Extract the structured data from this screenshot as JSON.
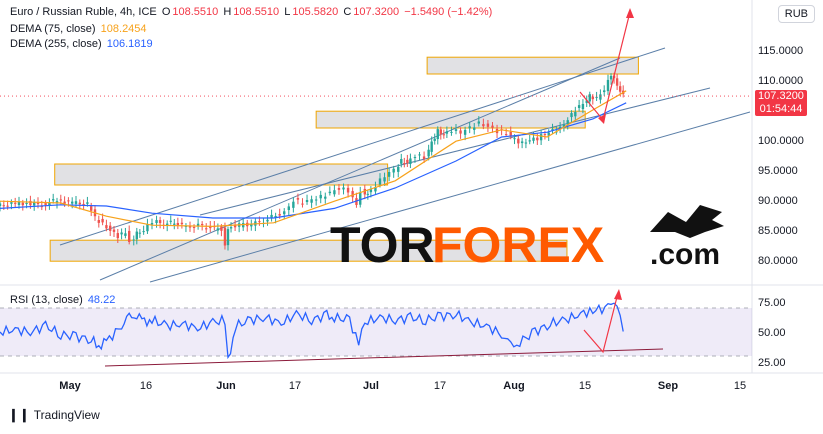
{
  "header": {
    "symbol_line": "Euro / Russian Ruble, 4h, ICE",
    "open_label": "O",
    "open": "108.5510",
    "high_label": "H",
    "high": "108.5510",
    "low_label": "L",
    "low": "105.5820",
    "close_label": "C",
    "close": "107.3200",
    "change": "−1.5490 (−1.42%)",
    "dema75_label": "DEMA (75, close)",
    "dema75_value": "108.2454",
    "dema255_label": "DEMA (255, close)",
    "dema255_value": "106.1819",
    "currency": "RUB"
  },
  "price_tag": {
    "price": "107.3200",
    "countdown": "01:54:44"
  },
  "rsi": {
    "label": "RSI (13, close)",
    "value": "48.22"
  },
  "watermark": {
    "part1": "TOR",
    "part2": "FOREX",
    "part3": ".com"
  },
  "branding": {
    "tradingview": "TradingView"
  },
  "colors": {
    "up": "#26a69a",
    "down": "#ef5350",
    "dema75": "#f7a21b",
    "dema255": "#2962ff",
    "rsi": "#2962ff",
    "accent_red": "#f23645",
    "zone_border": "#f0a500"
  },
  "chart_data": [
    {
      "type": "candlestick",
      "x_tick_labels": [
        "May",
        "16",
        "Jun",
        "17",
        "Jul",
        "17",
        "Aug",
        "15",
        "Sep",
        "15"
      ],
      "y_tick_labels": [
        "115.0000",
        "110.0000",
        "105.0000",
        "100.0000",
        "95.0000",
        "90.0000",
        "85.0000",
        "80.0000"
      ],
      "ylim": [
        78,
        118
      ],
      "close_path": [
        [
          0,
          89.0
        ],
        [
          10,
          89.3
        ],
        [
          20,
          89.5
        ],
        [
          30,
          89.2
        ],
        [
          40,
          90.0
        ],
        [
          50,
          89.5
        ],
        [
          60,
          89.3
        ],
        [
          65,
          87.0
        ],
        [
          70,
          86.0
        ],
        [
          75,
          85.0
        ],
        [
          80,
          84.0
        ],
        [
          85,
          84.5
        ],
        [
          88,
          83.0
        ],
        [
          92,
          84.5
        ],
        [
          97,
          85.0
        ],
        [
          103,
          86.5
        ],
        [
          110,
          86.0
        ],
        [
          117,
          86.3
        ],
        [
          125,
          85.5
        ],
        [
          133,
          85.7
        ],
        [
          141,
          85.3
        ],
        [
          148,
          85.2
        ],
        [
          150,
          82.5
        ],
        [
          152,
          85.5
        ],
        [
          160,
          85.8
        ],
        [
          168,
          86.0
        ],
        [
          176,
          86.5
        ],
        [
          184,
          87.5
        ],
        [
          190,
          88.0
        ],
        [
          196,
          90.0
        ],
        [
          202,
          89.5
        ],
        [
          208,
          90.0
        ],
        [
          214,
          90.5
        ],
        [
          220,
          91.3
        ],
        [
          226,
          92.0
        ],
        [
          232,
          91.5
        ],
        [
          237,
          89.0
        ],
        [
          240,
          91.5
        ],
        [
          244,
          91.0
        ],
        [
          250,
          92.5
        ],
        [
          256,
          94.0
        ],
        [
          262,
          95.0
        ],
        [
          266,
          96.5
        ],
        [
          270,
          96.2
        ],
        [
          276,
          97.5
        ],
        [
          282,
          97.0
        ],
        [
          286,
          99.5
        ],
        [
          290,
          101.5
        ],
        [
          294,
          101.0
        ],
        [
          300,
          101.7
        ],
        [
          306,
          101.2
        ],
        [
          312,
          102.0
        ],
        [
          318,
          102.8
        ],
        [
          324,
          102.3
        ],
        [
          330,
          101.5
        ],
        [
          336,
          101.0
        ],
        [
          341,
          100.0
        ],
        [
          346,
          99.5
        ],
        [
          351,
          100.1
        ],
        [
          356,
          100.3
        ],
        [
          361,
          101.0
        ],
        [
          366,
          101.5
        ],
        [
          371,
          102.0
        ],
        [
          376,
          103.5
        ],
        [
          381,
          105.0
        ],
        [
          386,
          106.0
        ],
        [
          390,
          107.3
        ],
        [
          395,
          107.0
        ],
        [
          400,
          108.5
        ],
        [
          404,
          111.0
        ],
        [
          408,
          109.0
        ],
        [
          412,
          107.3
        ]
      ],
      "x_domain": [
        0,
        500
      ],
      "dema75_path": [
        [
          0,
          89.8
        ],
        [
          40,
          89.5
        ],
        [
          70,
          87.3
        ],
        [
          100,
          85.8
        ],
        [
          140,
          85.6
        ],
        [
          180,
          86.2
        ],
        [
          220,
          89.8
        ],
        [
          260,
          93.2
        ],
        [
          300,
          99.8
        ],
        [
          330,
          101.7
        ],
        [
          360,
          100.5
        ],
        [
          390,
          105.0
        ],
        [
          412,
          108.2
        ]
      ],
      "dema255_path": [
        [
          0,
          88.6
        ],
        [
          40,
          89.2
        ],
        [
          70,
          89.0
        ],
        [
          100,
          87.8
        ],
        [
          140,
          87.0
        ],
        [
          180,
          87.0
        ],
        [
          220,
          88.6
        ],
        [
          260,
          92.0
        ],
        [
          300,
          96.5
        ],
        [
          330,
          100.5
        ],
        [
          360,
          101.3
        ],
        [
          390,
          103.5
        ],
        [
          412,
          106.2
        ]
      ],
      "zones": [
        [
          36,
          255,
          92.5,
          96.0
        ],
        [
          33,
          373,
          79.8,
          83.3
        ],
        [
          208,
          385,
          102.0,
          104.8
        ],
        [
          281,
          420,
          111.0,
          113.8
        ]
      ]
    },
    {
      "type": "line",
      "name": "RSI (13, close)",
      "y_tick_labels": [
        "75.00",
        "50.00",
        "25.00"
      ],
      "ylim": [
        20,
        80
      ],
      "upper_band": 70,
      "lower_band": 30,
      "values_path": [
        [
          0,
          50
        ],
        [
          10,
          52
        ],
        [
          20,
          50
        ],
        [
          30,
          55
        ],
        [
          40,
          48
        ],
        [
          50,
          46
        ],
        [
          60,
          44
        ],
        [
          65,
          38
        ],
        [
          70,
          42
        ],
        [
          80,
          55
        ],
        [
          85,
          62
        ],
        [
          90,
          65
        ],
        [
          95,
          58
        ],
        [
          100,
          60
        ],
        [
          110,
          55
        ],
        [
          120,
          57
        ],
        [
          130,
          53
        ],
        [
          140,
          58
        ],
        [
          148,
          60
        ],
        [
          150,
          25
        ],
        [
          155,
          55
        ],
        [
          165,
          60
        ],
        [
          175,
          62
        ],
        [
          185,
          57
        ],
        [
          195,
          65
        ],
        [
          205,
          60
        ],
        [
          215,
          64
        ],
        [
          220,
          62
        ],
        [
          230,
          60
        ],
        [
          236,
          40
        ],
        [
          240,
          58
        ],
        [
          250,
          62
        ],
        [
          260,
          60
        ],
        [
          270,
          62
        ],
        [
          280,
          60
        ],
        [
          290,
          63
        ],
        [
          300,
          65
        ],
        [
          310,
          58
        ],
        [
          320,
          55
        ],
        [
          330,
          48
        ],
        [
          336,
          38
        ],
        [
          342,
          42
        ],
        [
          352,
          50
        ],
        [
          362,
          57
        ],
        [
          372,
          60
        ],
        [
          382,
          65
        ],
        [
          390,
          68
        ],
        [
          400,
          70
        ],
        [
          404,
          78
        ],
        [
          408,
          60
        ],
        [
          412,
          48
        ]
      ]
    }
  ]
}
